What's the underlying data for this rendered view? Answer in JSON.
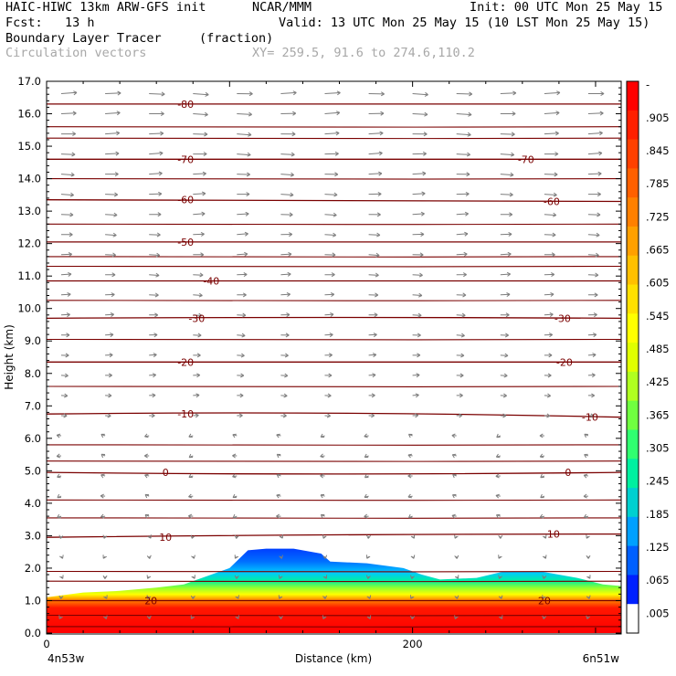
{
  "header": {
    "model": "HAIC-HIWC 13km ARW-GFS init",
    "center": "NCAR/MMM",
    "init": "Init: 00 UTC Mon 25 May 15",
    "fcst": "Fcst:   13 h",
    "valid": "Valid: 13 UTC Mon 25 May 15 (10 LST Mon 25 May 15)",
    "field": "Boundary Layer Tracer",
    "units": "(fraction)",
    "overlay": "Circulation vectors",
    "xy": "XY= 259.5, 91.6 to 274.6,110.2"
  },
  "chart_data": {
    "type": "heatmap",
    "ylabel": "Height (km)",
    "xlabel": "Distance (km)",
    "ylim": [
      0,
      17
    ],
    "xlim": [
      0,
      314
    ],
    "y_ticks": [
      "0.0",
      "1.0",
      "2.0",
      "3.0",
      "4.0",
      "5.0",
      "6.0",
      "7.0",
      "8.0",
      "9.0",
      "10.0",
      "11.0",
      "12.0",
      "13.0",
      "14.0",
      "15.0",
      "16.0",
      "17.0"
    ],
    "x_ticks": [
      {
        "value": 0,
        "label": "0"
      },
      {
        "value": 200,
        "label": "200"
      }
    ],
    "x_end_labels": {
      "left": "4n53w",
      "right": "6n51w"
    },
    "colorbar": {
      "labels": [
        "-",
        ".905",
        ".845",
        ".785",
        ".725",
        ".665",
        ".605",
        ".545",
        ".485",
        ".425",
        ".365",
        ".305",
        ".245",
        ".185",
        ".125",
        ".065",
        ".005"
      ],
      "colors": [
        "#ff0000",
        "#ff2000",
        "#ff4000",
        "#ff6000",
        "#ff8000",
        "#ffa000",
        "#ffc000",
        "#ffe000",
        "#ffff00",
        "#e0ff00",
        "#b0ff20",
        "#70ff40",
        "#30ff70",
        "#00f0a0",
        "#00d0d0",
        "#00a0ff",
        "#0060ff",
        "#0020ff",
        "#ffffff"
      ]
    },
    "tracer_top_km": [
      {
        "x": 0,
        "top": 1.1
      },
      {
        "x": 20,
        "top": 1.25
      },
      {
        "x": 40,
        "top": 1.3
      },
      {
        "x": 60,
        "top": 1.4
      },
      {
        "x": 75,
        "top": 1.5
      },
      {
        "x": 90,
        "top": 1.8
      },
      {
        "x": 100,
        "top": 2.0
      },
      {
        "x": 110,
        "top": 2.55
      },
      {
        "x": 120,
        "top": 2.6
      },
      {
        "x": 135,
        "top": 2.6
      },
      {
        "x": 150,
        "top": 2.45
      },
      {
        "x": 155,
        "top": 2.2
      },
      {
        "x": 175,
        "top": 2.15
      },
      {
        "x": 195,
        "top": 2.0
      },
      {
        "x": 205,
        "top": 1.8
      },
      {
        "x": 215,
        "top": 1.65
      },
      {
        "x": 235,
        "top": 1.7
      },
      {
        "x": 250,
        "top": 1.9
      },
      {
        "x": 270,
        "top": 1.9
      },
      {
        "x": 290,
        "top": 1.7
      },
      {
        "x": 304,
        "top": 1.5
      },
      {
        "x": 314,
        "top": 1.45
      }
    ],
    "isotherm_series": [
      {
        "label": "20",
        "label_x": [
          57,
          272
        ],
        "y": [
          1.0,
          1.0,
          1.0
        ]
      },
      {
        "label": "10",
        "label_x": [
          65,
          277
        ],
        "y": [
          2.95,
          3.05,
          3.05
        ]
      },
      {
        "label": "0",
        "label_x": [
          65,
          285
        ],
        "y": [
          4.95,
          4.85,
          4.95
        ]
      },
      {
        "label": "-10",
        "label_x": [
          76,
          297
        ],
        "y": [
          6.75,
          6.85,
          6.65
        ]
      },
      {
        "label": "-20",
        "label_x": [
          76,
          283
        ],
        "y": [
          8.35,
          8.35,
          8.35
        ]
      },
      {
        "label": "-30",
        "label_x": [
          82,
          282
        ],
        "y": [
          9.7,
          9.75,
          9.7
        ]
      },
      {
        "label": "-40",
        "label_x": [
          90,
          null
        ],
        "y": [
          10.85,
          10.85,
          10.85
        ]
      },
      {
        "label": "-50",
        "label_x": [
          76,
          null
        ],
        "y": [
          12.05,
          12.05,
          12.05
        ]
      },
      {
        "label": "-60",
        "label_x": [
          76,
          276
        ],
        "y": [
          13.35,
          13.3,
          13.3
        ]
      },
      {
        "label": "-70",
        "label_x": [
          76,
          262
        ],
        "y": [
          14.6,
          14.6,
          14.6
        ]
      },
      {
        "label": "-80",
        "label_x": [
          76,
          null
        ],
        "y": [
          16.3,
          16.3,
          16.3
        ]
      }
    ],
    "contour_levels": [
      0.2,
      0.55,
      1.6,
      1.9,
      3.55,
      4.1,
      5.3,
      5.8,
      7.6,
      9.05,
      10.25,
      11.3,
      11.6,
      12.6,
      14.0,
      15.25,
      15.6
    ]
  }
}
